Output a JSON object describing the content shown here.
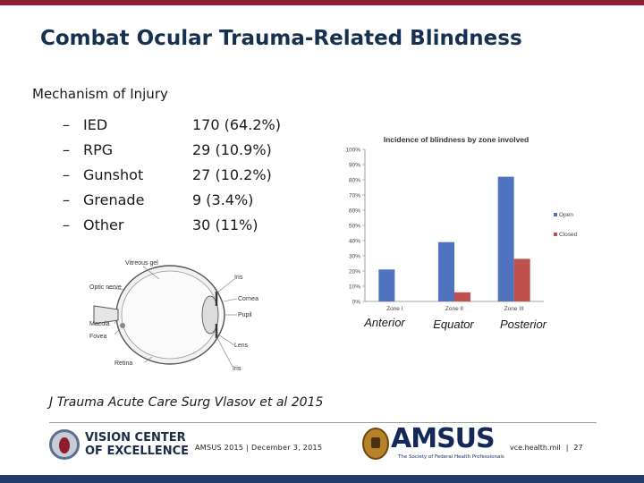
{
  "slide": {
    "title": "Combat Ocular Trauma-Related Blindness",
    "subtitle": "Mechanism of Injury",
    "mechanisms": [
      {
        "name": "IED",
        "value": "170 (64.2%)"
      },
      {
        "name": "RPG",
        "value": "29 (10.9%)"
      },
      {
        "name": "Gunshot",
        "value": "27 (10.2%)"
      },
      {
        "name": "Grenade",
        "value": "9 (3.4%)"
      },
      {
        "name": "Other",
        "value": "30 (11%)"
      }
    ],
    "bullet": "–",
    "zone_annotations": [
      "Anterior",
      "Equator",
      "Posterior"
    ],
    "citation": "J Trauma Acute Care Surg  Vlasov et al 2015"
  },
  "eye_diagram": {
    "labels": {
      "vitreous": "Vitreous gel",
      "optic": "Optic nerve",
      "macula": "Macula",
      "fovea": "Fovea",
      "retina": "Retina",
      "iris_top": "Iris",
      "cornea": "Cornea",
      "pupil": "Pupil",
      "lens": "Lens",
      "iris_bottom": "Iris"
    }
  },
  "chart_data": {
    "type": "bar",
    "title": "Incidence of blindness by zone involved",
    "categories": [
      "Zone I",
      "Zone II",
      "Zone III"
    ],
    "series": [
      {
        "name": "Open",
        "values": [
          21,
          39,
          82
        ],
        "color": "#4f73be"
      },
      {
        "name": "Closed",
        "values": [
          0,
          6,
          28
        ],
        "color": "#c0504d"
      }
    ],
    "ylim": [
      0,
      100
    ],
    "yticks": [
      "0%",
      "10%",
      "20%",
      "30%",
      "40%",
      "50%",
      "60%",
      "70%",
      "80%",
      "90%",
      "100%"
    ],
    "legend": "right",
    "grid": false
  },
  "footer": {
    "vce_line1": "VISION CENTER",
    "vce_line2": "OF EXCELLENCE",
    "event": "AMSUS 2015 | December 3, 2015",
    "amsus_name": "AMSUS",
    "amsus_tagline": "The Society of Federal Health Professionals",
    "site": "vce.health.mil",
    "separator": "|",
    "page": "27"
  },
  "colors": {
    "topbar": "#8c2130",
    "title": "#16304f",
    "bottombar": "#233c69"
  }
}
